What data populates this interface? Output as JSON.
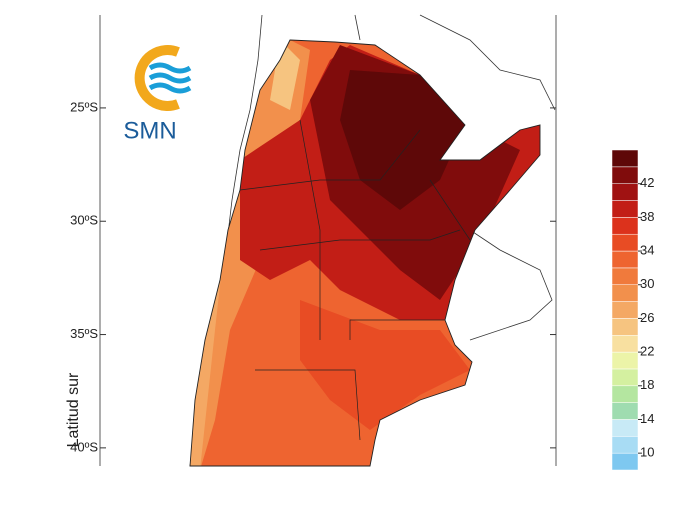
{
  "logo": {
    "text": "SMN"
  },
  "map": {
    "y_label": "Latitud sur",
    "yticks": [
      {
        "value": -25,
        "label": "25ºS"
      },
      {
        "value": -30,
        "label": "30ºS"
      },
      {
        "value": -35,
        "label": "35ºS"
      },
      {
        "value": -40,
        "label": "40ºS"
      }
    ],
    "ylim": [
      -20.9,
      -40.8
    ]
  },
  "colorbar": {
    "levels": [
      8,
      10,
      12,
      14,
      16,
      18,
      20,
      22,
      24,
      26,
      28,
      30,
      32,
      34,
      36,
      38,
      40,
      42,
      44,
      46
    ],
    "colors": [
      "#7ec8f0",
      "#a8dcf4",
      "#c8eaf6",
      "#9fdcb0",
      "#b4e6a0",
      "#d4f0a0",
      "#ecf4a8",
      "#f8e0a0",
      "#f6c480",
      "#f4a864",
      "#f2904c",
      "#f07a3c",
      "#ee6430",
      "#e84c24",
      "#dc321c",
      "#c21e16",
      "#a01212",
      "#800c0c",
      "#5e0808"
    ],
    "labels": [
      10,
      14,
      18,
      22,
      26,
      30,
      34,
      38,
      42
    ]
  }
}
